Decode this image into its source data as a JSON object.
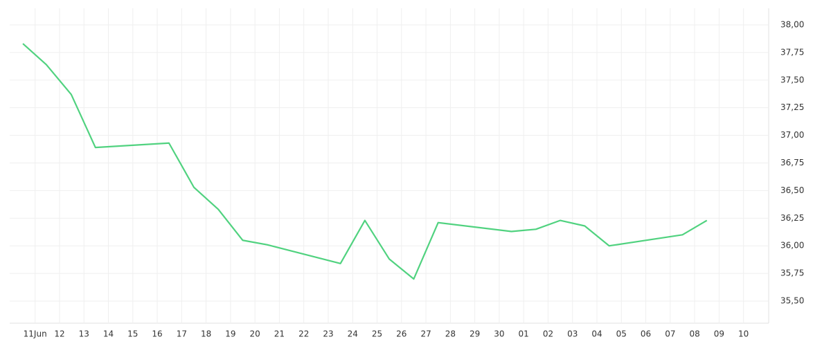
{
  "chart_data": {
    "type": "line",
    "x": [
      -0.5,
      0.46,
      1.48,
      2.47,
      5.48,
      6.5,
      7.5,
      8.5,
      9.5,
      12.5,
      13.5,
      14.5,
      15.5,
      16.5,
      19.5,
      20.5,
      21.5,
      22.5,
      23.5,
      26.5,
      27.5
    ],
    "series": [
      {
        "color": "#50d27f",
        "values": [
          37.83,
          37.64,
          37.37,
          36.89,
          36.93,
          36.53,
          36.33,
          36.05,
          36.01,
          35.84,
          36.23,
          35.88,
          35.7,
          36.21,
          36.13,
          36.15,
          36.23,
          36.18,
          36.0,
          36.1,
          36.23
        ]
      }
    ],
    "xlim": [
      -1.04,
      30.03
    ],
    "xticks": [
      {
        "value": 0,
        "label": "11Jun"
      },
      {
        "value": 1,
        "label": "12"
      },
      {
        "value": 2,
        "label": "13"
      },
      {
        "value": 3,
        "label": "14"
      },
      {
        "value": 4,
        "label": "15"
      },
      {
        "value": 5,
        "label": "16"
      },
      {
        "value": 6,
        "label": "17"
      },
      {
        "value": 7,
        "label": "18"
      },
      {
        "value": 8,
        "label": "19"
      },
      {
        "value": 9,
        "label": "20"
      },
      {
        "value": 10,
        "label": "21"
      },
      {
        "value": 11,
        "label": "22"
      },
      {
        "value": 12,
        "label": "23"
      },
      {
        "value": 13,
        "label": "24"
      },
      {
        "value": 14,
        "label": "25"
      },
      {
        "value": 15,
        "label": "26"
      },
      {
        "value": 16,
        "label": "27"
      },
      {
        "value": 17,
        "label": "28"
      },
      {
        "value": 18,
        "label": "29"
      },
      {
        "value": 19,
        "label": "30"
      },
      {
        "value": 20,
        "label": "01"
      },
      {
        "value": 21,
        "label": "02"
      },
      {
        "value": 22,
        "label": "03"
      },
      {
        "value": 23,
        "label": "04"
      },
      {
        "value": 24,
        "label": "05"
      },
      {
        "value": 25,
        "label": "06"
      },
      {
        "value": 26,
        "label": "07"
      },
      {
        "value": 27,
        "label": "08"
      },
      {
        "value": 28,
        "label": "09"
      },
      {
        "value": 29,
        "label": "10"
      }
    ],
    "ylim": [
      35.3,
      38.15
    ],
    "yticks": [
      {
        "value": 35.5,
        "label": "35,50"
      },
      {
        "value": 35.75,
        "label": "35,75"
      },
      {
        "value": 36,
        "label": "36,00"
      },
      {
        "value": 36.25,
        "label": "36,25"
      },
      {
        "value": 36.5,
        "label": "36,50"
      },
      {
        "value": 36.75,
        "label": "36,75"
      },
      {
        "value": 37,
        "label": "37,00"
      },
      {
        "value": 37.25,
        "label": "37,25"
      },
      {
        "value": 37.5,
        "label": "37,50"
      },
      {
        "value": 37.75,
        "label": "37,75"
      },
      {
        "value": 38,
        "label": "38,00"
      }
    ],
    "grid": true
  }
}
